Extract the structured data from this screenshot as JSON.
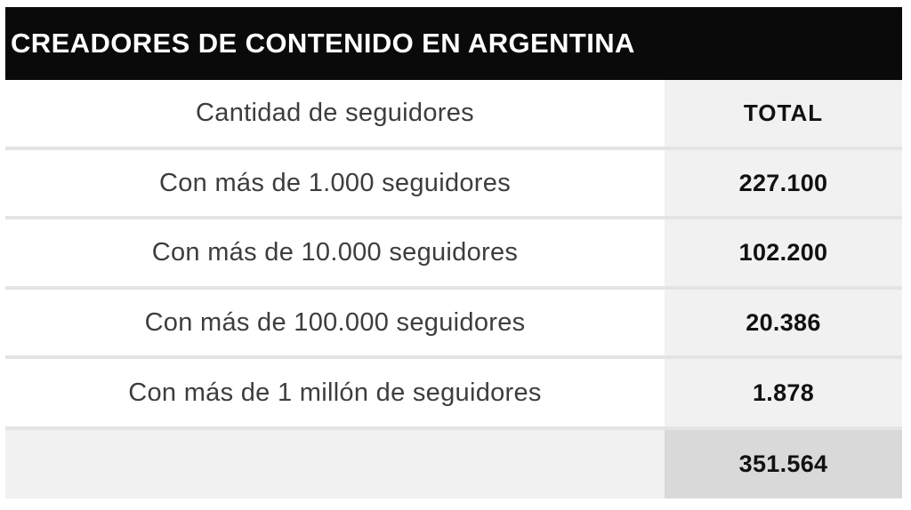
{
  "table": {
    "title": "CREADORES DE CONTENIDO EN ARGENTINA",
    "header": {
      "label": "Cantidad de seguidores",
      "value": "TOTAL"
    },
    "rows": [
      {
        "label": "Con más de 1.000 seguidores",
        "value": "227.100"
      },
      {
        "label": "Con más de 10.000 seguidores",
        "value": "102.200"
      },
      {
        "label": "Con más de 100.000 seguidores",
        "value": "20.386"
      },
      {
        "label": "Con más de 1 millón de seguidores",
        "value": "1.878"
      }
    ],
    "total": {
      "value": "351.564"
    }
  },
  "colors": {
    "title_bar_bg": "#0a0a0a",
    "title_text": "#ffffff",
    "total_column_bg": "#f1f1f2",
    "total_row_left_bg": "#f1f1f2",
    "grand_total_cell_bg": "#d9d9d9",
    "separator": "#e4e4e4",
    "label_text": "#3d3d3d",
    "value_text": "#111111"
  },
  "chart_data": {
    "type": "table",
    "title": "CREADORES DE CONTENIDO EN ARGENTINA",
    "columns": [
      "Cantidad de seguidores",
      "TOTAL"
    ],
    "rows": [
      [
        "Con más de 1.000 seguidores",
        "227.100"
      ],
      [
        "Con más de 10.000 seguidores",
        "102.200"
      ],
      [
        "Con más de 100.000 seguidores",
        "20.386"
      ],
      [
        "Con más de 1 millón de seguidores",
        "1.878"
      ]
    ],
    "grand_total": "351.564",
    "values_numeric": [
      227100,
      102200,
      20386,
      1878
    ],
    "grand_total_numeric": 351564,
    "legend_position": "none",
    "grid": false
  }
}
